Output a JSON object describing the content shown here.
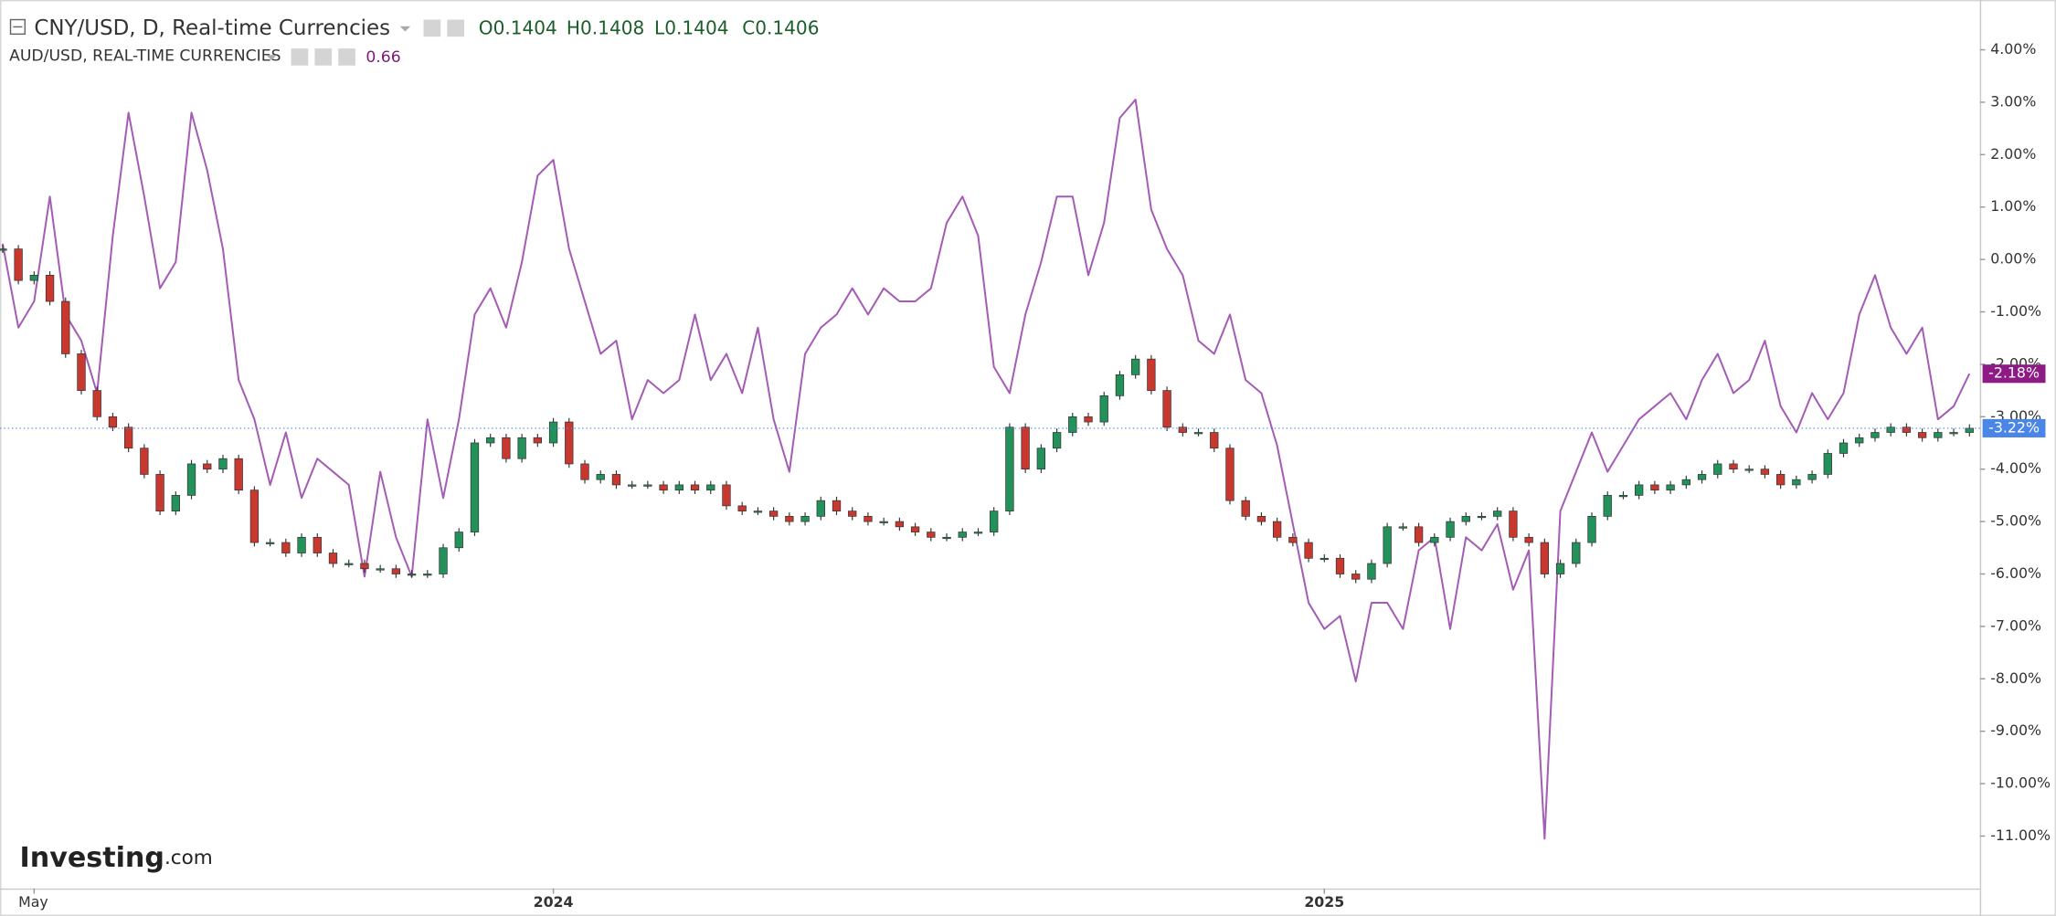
{
  "chart_data": {
    "type": "line",
    "header": {
      "ohlc": [
        {
          "label": "O",
          "value": 0.1404
        },
        {
          "label": "H",
          "value": 0.1408
        },
        {
          "label": "L",
          "value": 0.1404
        },
        {
          "label": "C",
          "value": 0.1406
        }
      ]
    },
    "logo": {
      "brand": "Investing",
      "suffix": ".com"
    },
    "categories": [
      null,
      null,
      "May",
      null,
      null,
      null,
      null,
      null,
      null,
      null,
      null,
      null,
      null,
      null,
      null,
      null,
      null,
      null,
      null,
      null,
      null,
      null,
      null,
      null,
      null,
      null,
      null,
      null,
      null,
      null,
      null,
      null,
      null,
      null,
      null,
      "2024",
      null,
      null,
      null,
      null,
      null,
      null,
      null,
      null,
      null,
      null,
      null,
      null,
      null,
      null,
      null,
      null,
      null,
      null,
      null,
      null,
      null,
      null,
      null,
      null,
      null,
      null,
      null,
      null,
      null,
      null,
      null,
      null,
      null,
      null,
      null,
      null,
      null,
      null,
      null,
      null,
      null,
      null,
      null,
      null,
      null,
      null,
      null,
      null,
      "2025",
      null,
      null,
      null,
      null,
      null,
      null,
      null,
      null,
      null,
      null,
      null,
      null,
      null,
      null,
      null,
      null,
      null,
      null,
      null,
      null,
      null,
      null,
      null,
      null,
      null,
      null,
      null,
      null,
      null,
      null,
      null,
      null,
      null,
      null,
      null,
      null,
      null,
      null,
      null,
      null,
      null
    ],
    "series": [
      {
        "name": "CNY/USD, D, Real-time Currencies",
        "style": "candles",
        "color": "#22915a",
        "down_color": "#c8382e",
        "last_value_label": "-3.22%",
        "label_color": "#4a86e8",
        "values": [
          0.2,
          -0.4,
          -0.3,
          -0.8,
          -1.8,
          -2.5,
          -3.0,
          -3.2,
          -3.6,
          -4.1,
          -4.8,
          -4.5,
          -3.9,
          -4.0,
          -3.8,
          -4.4,
          -5.4,
          -5.4,
          -5.6,
          -5.3,
          -5.6,
          -5.8,
          -5.8,
          -5.9,
          -5.9,
          -6.0,
          -6.0,
          -6.0,
          -5.5,
          -5.2,
          -3.5,
          -3.4,
          -3.8,
          -3.4,
          -3.5,
          -3.1,
          -3.9,
          -4.2,
          -4.1,
          -4.3,
          -4.3,
          -4.3,
          -4.4,
          -4.3,
          -4.4,
          -4.3,
          -4.7,
          -4.8,
          -4.8,
          -4.9,
          -5.0,
          -4.9,
          -4.6,
          -4.8,
          -4.9,
          -5.0,
          -5.0,
          -5.1,
          -5.2,
          -5.3,
          -5.3,
          -5.2,
          -5.2,
          -4.8,
          -3.2,
          -4.0,
          -3.6,
          -3.3,
          -3.0,
          -3.1,
          -2.6,
          -2.2,
          -1.9,
          -2.5,
          -3.2,
          -3.3,
          -3.3,
          -3.6,
          -4.6,
          -4.9,
          -5.0,
          -5.3,
          -5.4,
          -5.7,
          -5.7,
          -6.0,
          -6.1,
          -5.8,
          -5.1,
          -5.1,
          -5.4,
          -5.3,
          -5.0,
          -4.9,
          -4.9,
          -4.8,
          -5.3,
          -5.4,
          -6.0,
          -5.8,
          -5.4,
          -4.9,
          -4.5,
          -4.5,
          -4.3,
          -4.4,
          -4.3,
          -4.2,
          -4.1,
          -3.9,
          -4.0,
          -4.0,
          -4.1,
          -4.3,
          -4.2,
          -4.1,
          -3.7,
          -3.5,
          -3.4,
          -3.3,
          -3.2,
          -3.3,
          -3.4,
          -3.3,
          -3.3,
          -3.22
        ]
      },
      {
        "name": "AUD/USD, REAL-TIME CURRENCIES",
        "style": "line",
        "color": "#a45cb5",
        "last": 0.66,
        "last_value_label": "-2.18%",
        "label_color": "#8e1a86",
        "values": [
          0.3,
          -1.3,
          -0.8,
          1.2,
          -1.05,
          -1.55,
          -2.55,
          0.45,
          2.8,
          1.2,
          -0.55,
          -0.05,
          2.8,
          1.7,
          0.2,
          -2.3,
          -3.05,
          -4.3,
          -3.3,
          -4.55,
          -3.8,
          -4.05,
          -4.3,
          -6.05,
          -4.05,
          -5.3,
          -6.05,
          -3.05,
          -4.55,
          -3.05,
          -1.05,
          -0.55,
          -1.3,
          -0.05,
          1.6,
          1.9,
          0.2,
          -0.8,
          -1.8,
          -1.55,
          -3.05,
          -2.3,
          -2.55,
          -2.3,
          -1.05,
          -2.3,
          -1.8,
          -2.55,
          -1.3,
          -3.05,
          -4.05,
          -1.8,
          -1.3,
          -1.05,
          -0.55,
          -1.05,
          -0.55,
          -0.8,
          -0.8,
          -0.55,
          0.7,
          1.2,
          0.45,
          -2.05,
          -2.55,
          -1.05,
          -0.05,
          1.2,
          1.2,
          -0.3,
          0.7,
          2.7,
          3.05,
          0.95,
          0.2,
          -0.3,
          -1.55,
          -1.8,
          -1.05,
          -2.3,
          -2.55,
          -3.55,
          -5.05,
          -6.55,
          -7.05,
          -6.8,
          -8.05,
          -6.55,
          -6.55,
          -7.05,
          -5.55,
          -5.3,
          -7.05,
          -5.3,
          -5.55,
          -5.05,
          -6.3,
          -5.55,
          -11.05,
          -4.8,
          -4.05,
          -3.3,
          -4.05,
          -3.55,
          -3.05,
          -2.8,
          -2.55,
          -3.05,
          -2.3,
          -1.8,
          -2.55,
          -2.3,
          -1.55,
          -2.8,
          -3.3,
          -2.55,
          -3.05,
          -2.55,
          -1.05,
          -0.3,
          -1.3,
          -1.8,
          -1.3,
          -3.05,
          -2.8,
          -2.18
        ]
      }
    ],
    "ylim": [
      -12,
      4.95
    ],
    "yticks": [
      {
        "value": 4,
        "label": "4.00%"
      },
      {
        "value": 3,
        "label": "3.00%"
      },
      {
        "value": 2,
        "label": "2.00%"
      },
      {
        "value": 1,
        "label": "1.00%"
      },
      {
        "value": 0,
        "label": "0.00%"
      },
      {
        "value": -1,
        "label": "-1.00%"
      },
      {
        "value": -2,
        "label": "-2.00%"
      },
      {
        "value": -3,
        "label": "-3.00%"
      },
      {
        "value": -4,
        "label": "-4.00%"
      },
      {
        "value": -5,
        "label": "-5.00%"
      },
      {
        "value": -6,
        "label": "-6.00%"
      },
      {
        "value": -7,
        "label": "-7.00%"
      },
      {
        "value": -8,
        "label": "-8.00%"
      },
      {
        "value": -9,
        "label": "-9.00%"
      },
      {
        "value": -10,
        "label": "-10.00%"
      },
      {
        "value": -11,
        "label": "-11.00%"
      }
    ],
    "grid": false
  }
}
